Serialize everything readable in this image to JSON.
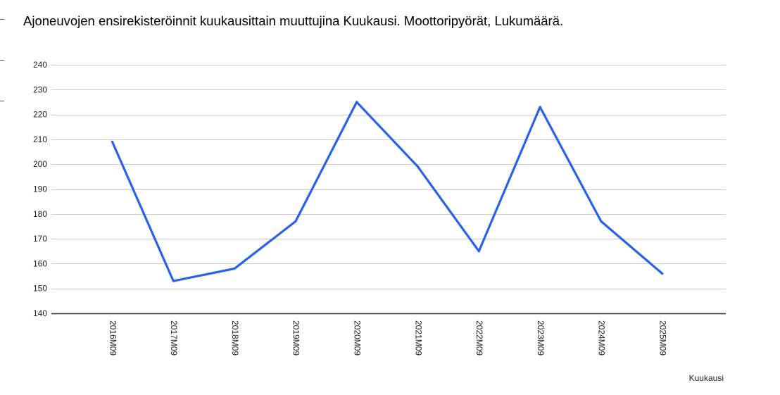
{
  "chart_data": {
    "type": "line",
    "title": "Ajoneuvojen ensirekisteröinnit kuukausittain muuttujina Kuukausi. Moottoripyörät, Lukumäärä.",
    "xlabel": "Kuukausi",
    "ylabel": "",
    "categories": [
      "2016M09",
      "2017M09",
      "2018M09",
      "2019M09",
      "2020M09",
      "2021M09",
      "2022M09",
      "2023M09",
      "2024M09",
      "2025M09"
    ],
    "series": [
      {
        "values": [
          209,
          153,
          158,
          177,
          225,
          199,
          165,
          223,
          177,
          156
        ]
      }
    ],
    "ylim": [
      140,
      240
    ],
    "yticks": [
      140,
      150,
      160,
      170,
      180,
      190,
      200,
      210,
      220,
      230,
      240
    ],
    "grid": true,
    "legend": "none",
    "colors": {
      "line": "#2962e8",
      "grid": "#cccccc",
      "axis": "#333333"
    }
  }
}
